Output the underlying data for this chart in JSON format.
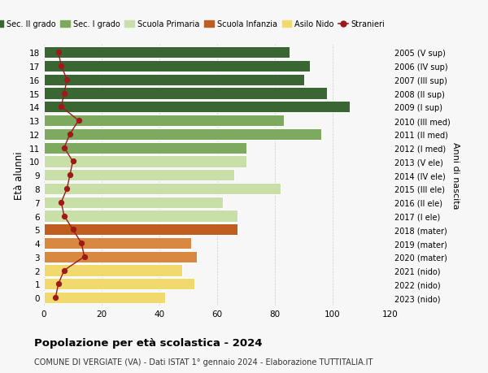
{
  "ages": [
    18,
    17,
    16,
    15,
    14,
    13,
    12,
    11,
    10,
    9,
    8,
    7,
    6,
    5,
    4,
    3,
    2,
    1,
    0
  ],
  "bar_values": [
    85,
    92,
    90,
    98,
    106,
    83,
    96,
    70,
    70,
    66,
    82,
    62,
    67,
    67,
    51,
    53,
    48,
    52,
    42
  ],
  "stranieri_values": [
    5,
    6,
    8,
    7,
    6,
    12,
    9,
    7,
    10,
    9,
    8,
    6,
    7,
    10,
    13,
    14,
    7,
    5,
    4
  ],
  "right_labels": [
    "2005 (V sup)",
    "2006 (IV sup)",
    "2007 (III sup)",
    "2008 (II sup)",
    "2009 (I sup)",
    "2010 (III med)",
    "2011 (II med)",
    "2012 (I med)",
    "2013 (V ele)",
    "2014 (IV ele)",
    "2015 (III ele)",
    "2016 (II ele)",
    "2017 (I ele)",
    "2018 (mater)",
    "2019 (mater)",
    "2020 (mater)",
    "2021 (nido)",
    "2022 (nido)",
    "2023 (nido)"
  ],
  "colors": {
    "sec2": "#3a6634",
    "sec1": "#7daa5e",
    "primaria": "#c8dfa8",
    "infanzia_dark": "#c05e20",
    "infanzia_light": "#d98840",
    "nido": "#f2d96e",
    "stranieri": "#9e1a1a"
  },
  "legend_labels": [
    "Sec. II grado",
    "Sec. I grado",
    "Scuola Primaria",
    "Scuola Infanzia",
    "Asilo Nido",
    "Stranieri"
  ],
  "title": "Popolazione per età scolastica - 2024",
  "subtitle": "COMUNE DI VERGIATE (VA) - Dati ISTAT 1° gennaio 2024 - Elaborazione TUTTITALIA.IT",
  "ylabel": "Età alunni",
  "right_ylabel": "Anni di nascita",
  "xlim": [
    0,
    120
  ],
  "xticks": [
    0,
    20,
    40,
    60,
    80,
    100,
    120
  ],
  "bg_color": "#f7f7f7"
}
